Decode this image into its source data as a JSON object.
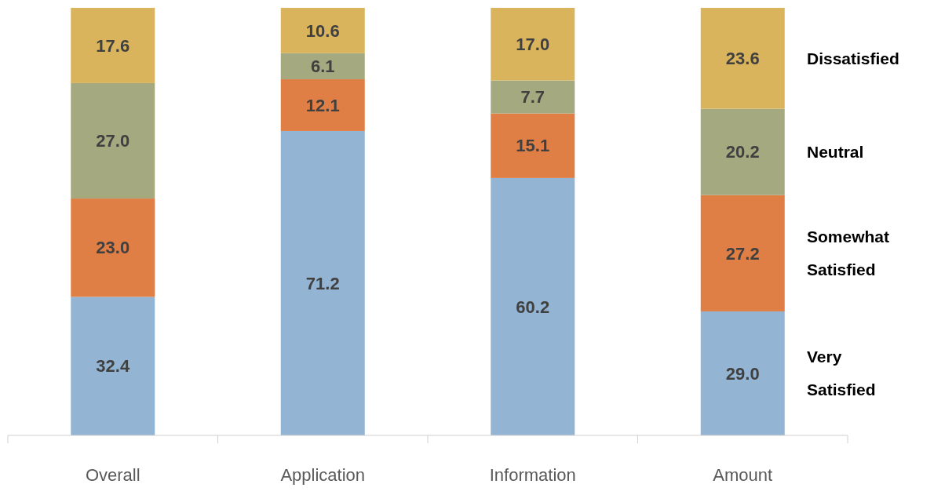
{
  "chart_data": {
    "type": "bar",
    "stacked": true,
    "legend": "right",
    "categories": [
      "Overall",
      "Application",
      "Information",
      "Amount"
    ],
    "series": [
      {
        "name": "Very Satisfied",
        "color": "#93b5d3",
        "values": [
          32.4,
          71.2,
          60.2,
          29.0
        ],
        "value_labels": [
          "32.4",
          "71.2",
          "60.2",
          "29.0"
        ]
      },
      {
        "name": "Somewhat Satisfied",
        "color": "#e07f45",
        "values": [
          23.0,
          12.1,
          15.1,
          27.2
        ],
        "value_labels": [
          "23.0",
          "12.1",
          "15.1",
          "27.2"
        ]
      },
      {
        "name": "Neutral",
        "color": "#a5a980",
        "values": [
          27.0,
          6.1,
          7.7,
          20.2
        ],
        "value_labels": [
          "27.0",
          "6.1",
          "7.7",
          "20.2"
        ]
      },
      {
        "name": "Dissatisfied",
        "color": "#d9b45d",
        "values": [
          17.6,
          10.6,
          17.0,
          23.6
        ],
        "value_labels": [
          "17.6",
          "10.6",
          "17.0",
          "23.6"
        ]
      }
    ]
  }
}
